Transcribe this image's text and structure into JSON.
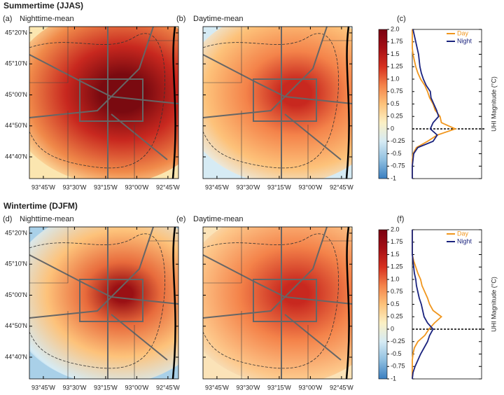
{
  "chart_data": [
    {
      "type": "uhi-row",
      "title": "Summertime (JJAS)",
      "maps": [
        {
          "label": "(a)",
          "subtitle": "Nighttime-mean",
          "mode": "night"
        },
        {
          "label": "(b)",
          "subtitle": "Daytime-mean",
          "mode": "day"
        }
      ],
      "xlim": [
        -93.862,
        -92.665
      ],
      "xticks": [
        {
          "value": -93.75,
          "label": "93°45'W"
        },
        {
          "value": -93.5,
          "label": "93°30'W"
        },
        {
          "value": -93.25,
          "label": "93°15'W"
        },
        {
          "value": -93,
          "label": "93°00'W"
        },
        {
          "value": -92.75,
          "label": "92°45'W"
        }
      ],
      "ylim": [
        44.55,
        45.367
      ],
      "yticks": [
        {
          "value": 44.6667,
          "label": "44°40'N"
        },
        {
          "value": 44.8333,
          "label": "44°50'N"
        },
        {
          "value": 45,
          "label": "45°00'N"
        },
        {
          "value": 45.1667,
          "label": "45°10'N"
        },
        {
          "value": 45.3333,
          "label": "45°20'N"
        }
      ],
      "colorbar": {
        "lim": [
          -1,
          2
        ],
        "colors": [
          "#3a7ec0",
          "#8fbfe0",
          "#d6ebf4",
          "#fbf0c4",
          "#fdc27a",
          "#f4834a",
          "#d7301f",
          "#a50f15",
          "#7a0010"
        ],
        "ticks": [
          {
            "value": 2,
            "label": "2.0"
          },
          1.75,
          1.5,
          1.25,
          {
            "value": 1,
            "label": "1.0"
          },
          0.75,
          0.5,
          0.25,
          0,
          -0.25,
          -0.5,
          -0.75,
          -1
        ]
      },
      "dist": {
        "label": "(c)",
        "ylabel": "UHI Magnitude (°C)",
        "xlim": [
          0,
          1
        ],
        "ylim": [
          -1,
          2
        ],
        "levels": [
          -1,
          -0.875,
          -0.75,
          -0.625,
          -0.5,
          -0.375,
          -0.25,
          -0.125,
          0,
          0.125,
          0.25,
          0.375,
          0.5,
          0.625,
          0.75,
          0.875,
          1,
          1.125,
          1.25,
          1.375,
          1.5,
          1.625,
          1.75,
          1.875,
          2
        ],
        "legend": "upper right",
        "series": [
          {
            "name": "Day",
            "color": "#f0961e",
            "values": [
              0,
              0,
              0,
              0,
              0.01,
              0.06,
              0.22,
              0.36,
              0.62,
              0.42,
              0.4,
              0.33,
              0.3,
              0.25,
              0.22,
              0.18,
              0.12,
              0.08,
              0.05,
              0.03,
              0.01,
              0,
              0,
              0,
              0
            ]
          },
          {
            "name": "Night",
            "color": "#1a237e",
            "values": [
              0,
              0,
              0,
              0.01,
              0.02,
              0.08,
              0.3,
              0.36,
              0.26,
              0.3,
              0.38,
              0.35,
              0.31,
              0.27,
              0.26,
              0.2,
              0.16,
              0.13,
              0.11,
              0.1,
              0.09,
              0.07,
              0.05,
              0.03,
              0.01
            ]
          }
        ]
      }
    },
    {
      "type": "uhi-row",
      "title": "Wintertime (DJFM)",
      "maps": [
        {
          "label": "(d)",
          "subtitle": "Nighttime-mean",
          "mode": "night-winter"
        },
        {
          "label": "(e)",
          "subtitle": "Daytime-mean",
          "mode": "day-winter"
        }
      ],
      "xlim": [
        -93.862,
        -92.665
      ],
      "xticks": [
        {
          "value": -93.75,
          "label": "93°45'W"
        },
        {
          "value": -93.5,
          "label": "93°30'W"
        },
        {
          "value": -93.25,
          "label": "93°15'W"
        },
        {
          "value": -93,
          "label": "93°00'W"
        },
        {
          "value": -92.75,
          "label": "92°45'W"
        }
      ],
      "ylim": [
        44.55,
        45.367
      ],
      "yticks": [
        {
          "value": 44.6667,
          "label": "44°40'N"
        },
        {
          "value": 44.8333,
          "label": "44°50'N"
        },
        {
          "value": 45,
          "label": "45°00'N"
        },
        {
          "value": 45.1667,
          "label": "45°10'N"
        },
        {
          "value": 45.3333,
          "label": "45°20'N"
        }
      ],
      "colorbar": {
        "lim": [
          -1,
          2
        ],
        "colors": [
          "#3a7ec0",
          "#8fbfe0",
          "#d6ebf4",
          "#fbf0c4",
          "#fdc27a",
          "#f4834a",
          "#d7301f",
          "#a50f15",
          "#7a0010"
        ],
        "ticks": [
          {
            "value": 2,
            "label": "2.0"
          },
          1.75,
          1.5,
          1.25,
          {
            "value": 1,
            "label": "1.0"
          },
          0.75,
          0.5,
          0.25,
          0,
          -0.25,
          -0.5,
          -0.75,
          -1
        ]
      },
      "dist": {
        "label": "(f)",
        "ylabel": "UHI Magnitude (°C)",
        "xlim": [
          0,
          1
        ],
        "ylim": [
          -1,
          2
        ],
        "levels": [
          -1,
          -0.875,
          -0.75,
          -0.625,
          -0.5,
          -0.375,
          -0.25,
          -0.125,
          0,
          0.125,
          0.25,
          0.375,
          0.5,
          0.625,
          0.75,
          0.875,
          1,
          1.125,
          1.25,
          1.375,
          1.5,
          1.625,
          1.75,
          1.875,
          2
        ],
        "legend": "upper right",
        "series": [
          {
            "name": "Day",
            "color": "#f0961e",
            "values": [
              0,
              0,
              0,
              0,
              0.01,
              0.03,
              0.08,
              0.18,
              0.24,
              0.32,
              0.42,
              0.3,
              0.25,
              0.22,
              0.18,
              0.14,
              0.12,
              0.08,
              0.05,
              0.02,
              0,
              0,
              0,
              0,
              0
            ]
          },
          {
            "name": "Night",
            "color": "#1a237e",
            "values": [
              0,
              0.01,
              0.04,
              0.08,
              0.12,
              0.17,
              0.22,
              0.25,
              0.3,
              0.22,
              0.17,
              0.15,
              0.13,
              0.1,
              0.08,
              0.06,
              0.05,
              0.03,
              0.02,
              0.01,
              0,
              0,
              0,
              0,
              0
            ]
          }
        ]
      }
    }
  ]
}
